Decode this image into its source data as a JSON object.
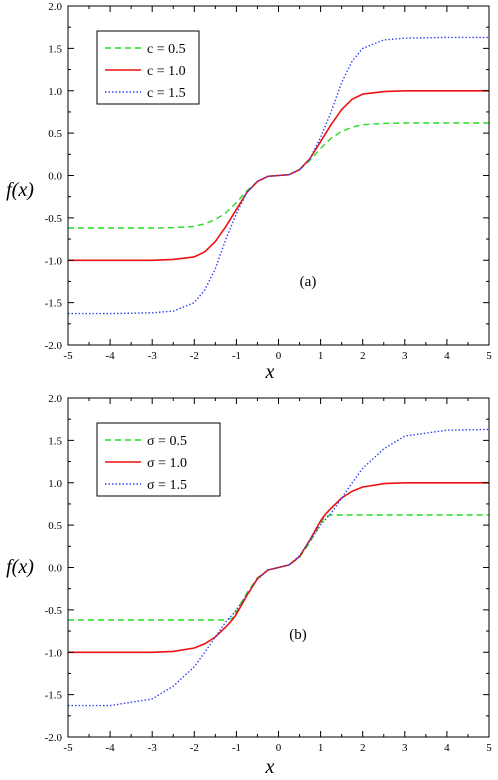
{
  "chart_data": [
    {
      "type": "line",
      "panel_label": "(a)",
      "xlabel": "x",
      "ylabel": "f(x)",
      "xlim": [
        -5,
        5
      ],
      "ylim": [
        -2.0,
        2.0
      ],
      "x_ticks": [
        "-5",
        "-4",
        "-3",
        "-2",
        "-1",
        "0",
        "1",
        "2",
        "3",
        "4",
        "5"
      ],
      "y_ticks": [
        "-2.0",
        "-1.5",
        "-1.0",
        "-0.5",
        "0.0",
        "0.5",
        "1.0",
        "1.5",
        "2.0"
      ],
      "grid": false,
      "legend_position": "top-left",
      "x": [
        -5,
        -4,
        -3,
        -2.5,
        -2,
        -1.75,
        -1.5,
        -1.25,
        -1,
        -0.75,
        -0.5,
        -0.25,
        0,
        0.25,
        0.5,
        0.75,
        1,
        1.25,
        1.5,
        1.75,
        2,
        2.5,
        3,
        4,
        5
      ],
      "series": [
        {
          "name": "c = 0.5",
          "color": "#22dd22",
          "dash": "dashed",
          "values": [
            -0.62,
            -0.62,
            -0.62,
            -0.615,
            -0.6,
            -0.57,
            -0.52,
            -0.44,
            -0.32,
            -0.18,
            -0.07,
            -0.01,
            0.0,
            0.01,
            0.07,
            0.18,
            0.32,
            0.44,
            0.52,
            0.57,
            0.6,
            0.615,
            0.62,
            0.62,
            0.62
          ]
        },
        {
          "name": "c = 1.0",
          "color": "#ee1111",
          "dash": "solid",
          "values": [
            -1.0,
            -1.0,
            -1.0,
            -0.99,
            -0.96,
            -0.9,
            -0.78,
            -0.6,
            -0.4,
            -0.2,
            -0.07,
            -0.01,
            0.0,
            0.01,
            0.07,
            0.2,
            0.4,
            0.6,
            0.78,
            0.9,
            0.96,
            0.99,
            1.0,
            1.0,
            1.0
          ]
        },
        {
          "name": "c = 1.5",
          "color": "#3344ee",
          "dash": "dotted",
          "values": [
            -1.63,
            -1.63,
            -1.62,
            -1.6,
            -1.5,
            -1.35,
            -1.1,
            -0.75,
            -0.45,
            -0.2,
            -0.07,
            -0.01,
            0.0,
            0.01,
            0.07,
            0.2,
            0.45,
            0.75,
            1.1,
            1.35,
            1.5,
            1.6,
            1.62,
            1.63,
            1.63
          ]
        }
      ]
    },
    {
      "type": "line",
      "panel_label": "(b)",
      "xlabel": "x",
      "ylabel": "f(x)",
      "xlim": [
        -5,
        5
      ],
      "ylim": [
        -2.0,
        2.0
      ],
      "x_ticks": [
        "-5",
        "-4",
        "-3",
        "-2",
        "-1",
        "0",
        "1",
        "2",
        "3",
        "4",
        "5"
      ],
      "y_ticks": [
        "-2.0",
        "-1.5",
        "-1.0",
        "-0.5",
        "0.0",
        "0.5",
        "1.0",
        "1.5",
        "2.0"
      ],
      "grid": false,
      "legend_position": "top-left",
      "x": [
        -5,
        -4,
        -3,
        -2.5,
        -2,
        -1.75,
        -1.5,
        -1.25,
        -1.1,
        -1,
        -0.75,
        -0.5,
        -0.25,
        0,
        0.25,
        0.5,
        0.75,
        1,
        1.1,
        1.25,
        1.5,
        1.75,
        2,
        2.5,
        3,
        4,
        5
      ],
      "series": [
        {
          "name": "σ = 0.5",
          "color": "#22dd22",
          "dash": "dashed",
          "values": [
            -0.62,
            -0.62,
            -0.62,
            -0.62,
            -0.62,
            -0.62,
            -0.62,
            -0.62,
            -0.6,
            -0.52,
            -0.3,
            -0.12,
            -0.03,
            0.0,
            0.03,
            0.12,
            0.3,
            0.52,
            0.6,
            0.62,
            0.62,
            0.62,
            0.62,
            0.62,
            0.62,
            0.62,
            0.62
          ]
        },
        {
          "name": "σ = 1.0",
          "color": "#ee1111",
          "dash": "solid",
          "values": [
            -1.0,
            -1.0,
            -1.0,
            -0.99,
            -0.95,
            -0.9,
            -0.82,
            -0.7,
            -0.62,
            -0.55,
            -0.33,
            -0.13,
            -0.03,
            0.0,
            0.03,
            0.13,
            0.33,
            0.55,
            0.62,
            0.7,
            0.82,
            0.9,
            0.95,
            0.99,
            1.0,
            1.0,
            1.0
          ]
        },
        {
          "name": "σ = 1.5",
          "color": "#3344ee",
          "dash": "dotted",
          "values": [
            -1.63,
            -1.63,
            -1.55,
            -1.4,
            -1.17,
            -1.0,
            -0.82,
            -0.64,
            -0.56,
            -0.5,
            -0.32,
            -0.14,
            -0.03,
            0.0,
            0.03,
            0.14,
            0.32,
            0.5,
            0.56,
            0.64,
            0.82,
            1.0,
            1.17,
            1.4,
            1.55,
            1.62,
            1.63
          ]
        }
      ]
    }
  ]
}
